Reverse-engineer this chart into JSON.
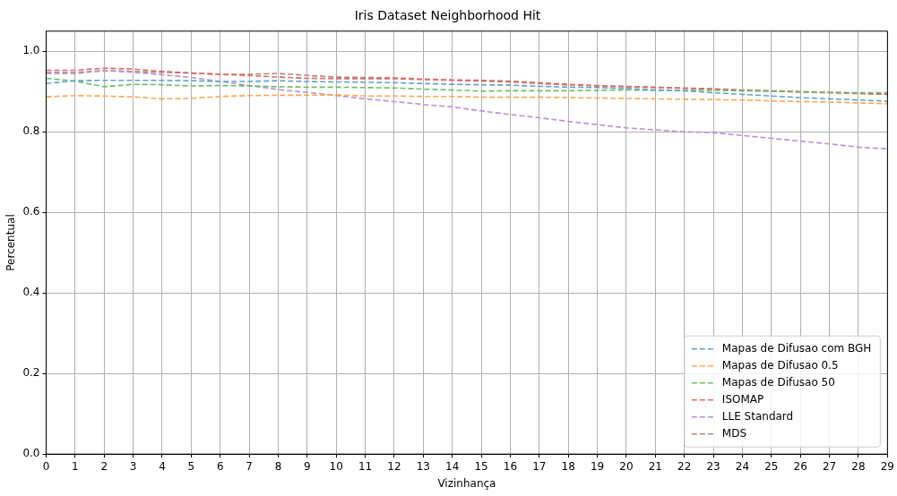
{
  "chart_data": {
    "type": "line",
    "title": "Iris Dataset Neighborhood Hit",
    "xlabel": "Vizinhança",
    "ylabel": "Percentual",
    "x": [
      0,
      1,
      2,
      3,
      4,
      5,
      6,
      7,
      8,
      9,
      10,
      11,
      12,
      13,
      14,
      15,
      16,
      17,
      18,
      19,
      20,
      21,
      22,
      23,
      24,
      25,
      26,
      27,
      28,
      29
    ],
    "xlim": [
      0,
      29
    ],
    "xticks": [
      0,
      1,
      2,
      3,
      4,
      5,
      6,
      7,
      8,
      9,
      10,
      11,
      12,
      13,
      14,
      15,
      16,
      17,
      18,
      19,
      20,
      21,
      22,
      23,
      24,
      25,
      26,
      27,
      28,
      29
    ],
    "ylim": [
      0,
      1.05
    ],
    "yticks": [
      {
        "value": 0,
        "label": "0.0"
      },
      {
        "value": 0.2,
        "label": "0.2"
      },
      {
        "value": 0.4,
        "label": "0.4"
      },
      {
        "value": 0.6,
        "label": "0.6"
      },
      {
        "value": 0.8,
        "label": "0.8"
      },
      {
        "value": 1,
        "label": "1.0"
      }
    ],
    "grid": true,
    "legend": "bottom right",
    "line_style": "dashed",
    "marker": "none",
    "series": [
      {
        "name": "Mapas de Difusao com BGH",
        "color": "#62a0cb",
        "values": [
          0.92,
          0.927,
          0.928,
          0.928,
          0.928,
          0.927,
          0.925,
          0.925,
          0.927,
          0.925,
          0.924,
          0.923,
          0.922,
          0.92,
          0.918,
          0.917,
          0.916,
          0.913,
          0.911,
          0.91,
          0.908,
          0.904,
          0.902,
          0.897,
          0.893,
          0.889,
          0.885,
          0.882,
          0.879,
          0.876
        ]
      },
      {
        "name": "Mapas de Difusao 0.5",
        "color": "#ffa556",
        "values": [
          0.887,
          0.89,
          0.889,
          0.887,
          0.882,
          0.883,
          0.888,
          0.89,
          0.891,
          0.891,
          0.892,
          0.889,
          0.889,
          0.888,
          0.888,
          0.886,
          0.886,
          0.886,
          0.885,
          0.884,
          0.883,
          0.882,
          0.881,
          0.88,
          0.879,
          0.877,
          0.875,
          0.874,
          0.872,
          0.87
        ]
      },
      {
        "name": "Mapas de Difusao 50",
        "color": "#6cbd6c",
        "values": [
          0.933,
          0.926,
          0.912,
          0.918,
          0.917,
          0.914,
          0.915,
          0.914,
          0.912,
          0.911,
          0.911,
          0.91,
          0.909,
          0.906,
          0.904,
          0.901,
          0.902,
          0.902,
          0.902,
          0.903,
          0.904,
          0.903,
          0.903,
          0.903,
          0.902,
          0.901,
          0.899,
          0.898,
          0.897,
          0.897
        ]
      },
      {
        "name": "ISOMAP",
        "color": "#e26868",
        "values": [
          0.953,
          0.953,
          0.958,
          0.956,
          0.95,
          0.946,
          0.943,
          0.94,
          0.936,
          0.933,
          0.932,
          0.932,
          0.932,
          0.93,
          0.928,
          0.926,
          0.924,
          0.92,
          0.917,
          0.914,
          0.912,
          0.91,
          0.908,
          0.906,
          0.903,
          0.901,
          0.899,
          0.897,
          0.895,
          0.893
        ]
      },
      {
        "name": "LLE Standard",
        "color": "#b495d1",
        "values": [
          0.948,
          0.948,
          0.952,
          0.948,
          0.942,
          0.935,
          0.925,
          0.915,
          0.905,
          0.898,
          0.89,
          0.882,
          0.875,
          0.868,
          0.862,
          0.852,
          0.843,
          0.835,
          0.826,
          0.818,
          0.81,
          0.805,
          0.8,
          0.798,
          0.791,
          0.784,
          0.777,
          0.77,
          0.762,
          0.758
        ]
      },
      {
        "name": "MDS",
        "color": "#ae8981",
        "values": [
          0.945,
          0.945,
          0.952,
          0.95,
          0.948,
          0.946,
          0.943,
          0.943,
          0.945,
          0.94,
          0.936,
          0.935,
          0.934,
          0.931,
          0.929,
          0.928,
          0.926,
          0.922,
          0.918,
          0.915,
          0.913,
          0.911,
          0.909,
          0.907,
          0.904,
          0.902,
          0.9,
          0.898,
          0.896,
          0.894
        ]
      }
    ]
  }
}
